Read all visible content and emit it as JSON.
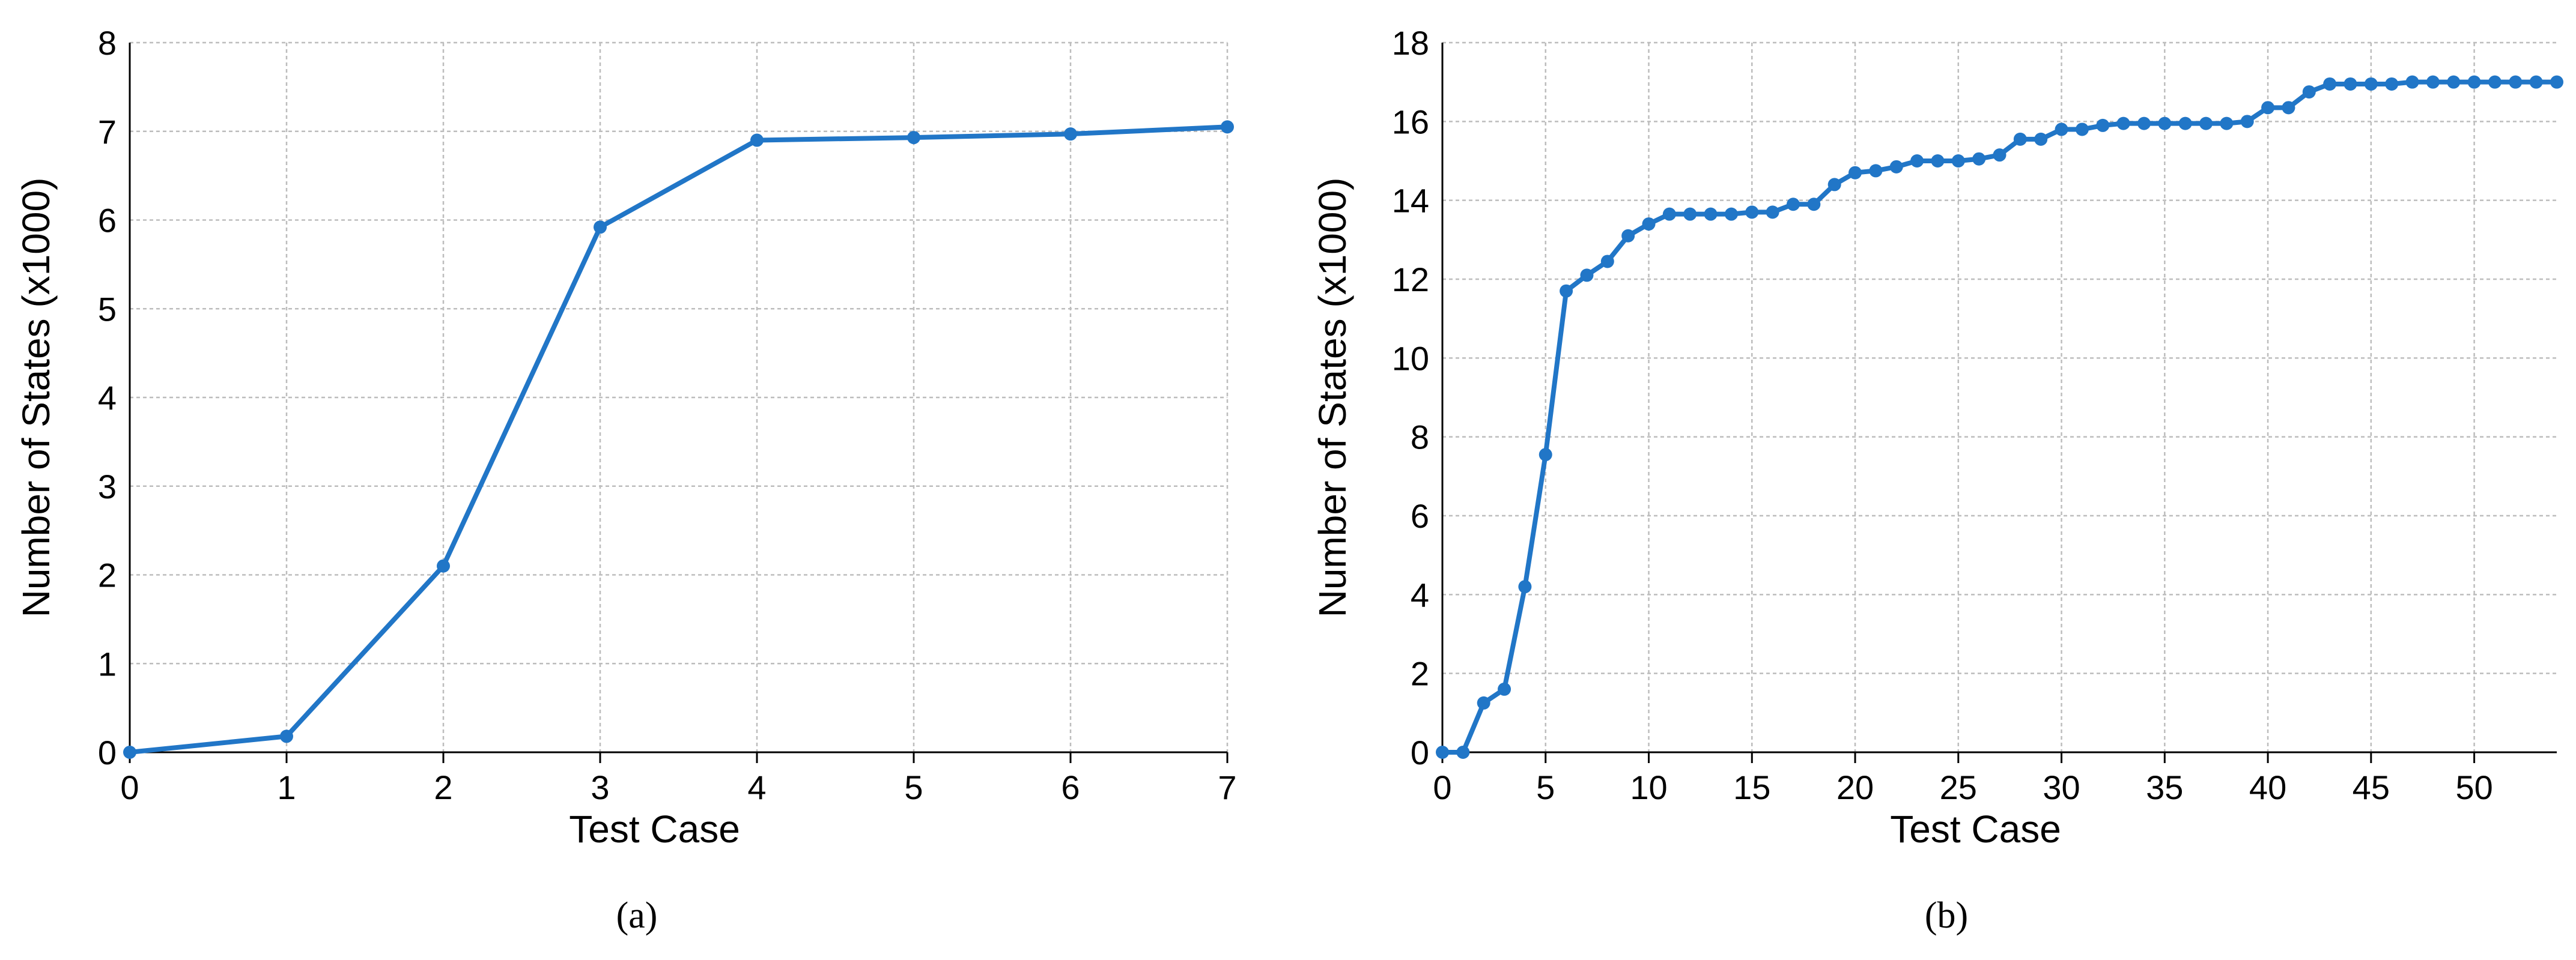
{
  "chart_data": [
    {
      "type": "line",
      "xlabel": "Test Case",
      "ylabel": "Number of States  (x1000)",
      "caption": "(a)",
      "x": [
        0,
        1,
        2,
        3,
        4,
        5,
        6,
        7
      ],
      "values": [
        0,
        0.18,
        2.1,
        5.92,
        6.9,
        6.93,
        6.97,
        7.05
      ],
      "color": "#2176c7",
      "xlim": [
        0,
        7
      ],
      "xticks": [
        0,
        1,
        2,
        3,
        4,
        5,
        6,
        7
      ],
      "ylim": [
        0,
        8
      ],
      "yticks": [
        0,
        1,
        2,
        3,
        4,
        5,
        6,
        7,
        8
      ],
      "grid": true
    },
    {
      "type": "line",
      "xlabel": "Test Case",
      "ylabel": "Number of States  (x1000)",
      "caption": "(b)",
      "x": [
        0,
        1,
        2,
        3,
        4,
        5,
        6,
        7,
        8,
        9,
        10,
        11,
        12,
        13,
        14,
        15,
        16,
        17,
        18,
        19,
        20,
        21,
        22,
        23,
        24,
        25,
        26,
        27,
        28,
        29,
        30,
        31,
        32,
        33,
        34,
        35,
        36,
        37,
        38,
        39,
        40,
        41,
        42,
        43,
        44,
        45,
        46,
        47,
        48,
        49,
        50,
        51,
        52,
        53,
        54
      ],
      "values": [
        0,
        0,
        1.25,
        1.6,
        4.2,
        7.55,
        11.7,
        12.1,
        12.45,
        13.1,
        13.4,
        13.65,
        13.65,
        13.65,
        13.65,
        13.7,
        13.7,
        13.9,
        13.9,
        14.4,
        14.7,
        14.75,
        14.85,
        15.0,
        15.0,
        15.0,
        15.05,
        15.15,
        15.55,
        15.55,
        15.8,
        15.8,
        15.9,
        15.95,
        15.95,
        15.95,
        15.95,
        15.95,
        15.95,
        16.0,
        16.35,
        16.35,
        16.75,
        16.95,
        16.95,
        16.95,
        16.95,
        17.0,
        17.0,
        17.0,
        17.0,
        17.0,
        17.0,
        17.0,
        17.0
      ],
      "color": "#2176c7",
      "xlim": [
        0,
        54
      ],
      "xticks": [
        0,
        5,
        10,
        15,
        20,
        25,
        30,
        35,
        40,
        45,
        50
      ],
      "ylim": [
        0,
        18
      ],
      "yticks": [
        0,
        2,
        4,
        6,
        8,
        10,
        12,
        14,
        16,
        18
      ],
      "grid": true
    }
  ]
}
